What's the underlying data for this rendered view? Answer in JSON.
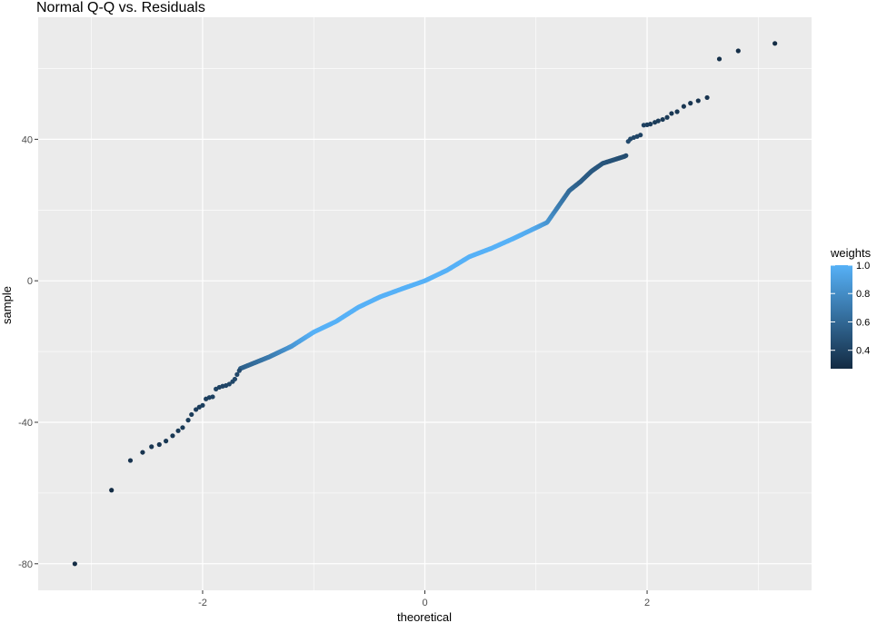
{
  "chart_data": {
    "type": "scatter",
    "title": "Normal Q-Q vs. Residuals",
    "xlabel": "theoretical",
    "ylabel": "sample",
    "xlim": [
      -3.48,
      3.48
    ],
    "ylim": [
      -87.5,
      74.5
    ],
    "x_ticks": [
      -2,
      0,
      2
    ],
    "x_tick_labels": [
      "-2",
      "0",
      "2"
    ],
    "y_ticks": [
      -80,
      -40,
      0,
      40
    ],
    "y_tick_labels": [
      "-80",
      "-40",
      "0",
      "40"
    ],
    "grid": true,
    "panel_background": "#ebebeb",
    "grid_color": "#ffffff",
    "color_scale": {
      "name": "weights",
      "low_color": "#132b43",
      "high_color": "#56b1f7",
      "range": [
        0.27,
        1.0
      ],
      "breaks": [
        0.4,
        0.6,
        0.8,
        1.0
      ],
      "break_labels": [
        "0.4",
        "0.6",
        "0.8",
        "1.0"
      ],
      "legend_position": "right"
    },
    "points": [
      {
        "x": -3.15,
        "y": -80.0,
        "w": 0.28
      },
      {
        "x": -2.82,
        "y": -59.2,
        "w": 0.28
      },
      {
        "x": -2.65,
        "y": -50.8,
        "w": 0.32
      },
      {
        "x": -2.54,
        "y": -48.5,
        "w": 0.32
      },
      {
        "x": -2.46,
        "y": -46.9,
        "w": 0.33
      },
      {
        "x": -2.39,
        "y": -46.3,
        "w": 0.33
      },
      {
        "x": -2.33,
        "y": -45.3,
        "w": 0.34
      },
      {
        "x": -2.27,
        "y": -43.8,
        "w": 0.34
      },
      {
        "x": -2.22,
        "y": -42.4,
        "w": 0.35
      },
      {
        "x": -2.18,
        "y": -41.5,
        "w": 0.35
      },
      {
        "x": -2.13,
        "y": -39.4,
        "w": 0.36
      },
      {
        "x": -2.1,
        "y": -37.8,
        "w": 0.36
      },
      {
        "x": -2.06,
        "y": -36.4,
        "w": 0.37
      },
      {
        "x": -2.03,
        "y": -35.7,
        "w": 0.37
      },
      {
        "x": -2.0,
        "y": -35.2,
        "w": 0.38
      },
      {
        "x": -1.97,
        "y": -33.4,
        "w": 0.38
      },
      {
        "x": -1.94,
        "y": -33.0,
        "w": 0.39
      },
      {
        "x": -1.91,
        "y": -32.8,
        "w": 0.39
      },
      {
        "x": -1.88,
        "y": -30.6,
        "w": 0.4
      },
      {
        "x": -1.85,
        "y": -30.1,
        "w": 0.4
      },
      {
        "x": -1.82,
        "y": -29.8,
        "w": 0.41
      },
      {
        "x": -1.79,
        "y": -29.6,
        "w": 0.41
      },
      {
        "x": -1.76,
        "y": -29.2,
        "w": 0.42
      },
      {
        "x": -1.73,
        "y": -28.5,
        "w": 0.42
      },
      {
        "x": -1.71,
        "y": -27.8,
        "w": 0.43
      },
      {
        "x": -1.69,
        "y": -26.5,
        "w": 0.43
      },
      {
        "x": -1.67,
        "y": -25.4,
        "w": 0.44
      },
      {
        "x": 1.81,
        "y": 35.4,
        "w": 0.45
      },
      {
        "x": 1.83,
        "y": 39.4,
        "w": 0.44
      },
      {
        "x": 1.85,
        "y": 40.1,
        "w": 0.43
      },
      {
        "x": 1.88,
        "y": 40.5,
        "w": 0.42
      },
      {
        "x": 1.91,
        "y": 40.8,
        "w": 0.41
      },
      {
        "x": 1.94,
        "y": 41.2,
        "w": 0.4
      },
      {
        "x": 1.97,
        "y": 44.0,
        "w": 0.39
      },
      {
        "x": 2.0,
        "y": 44.1,
        "w": 0.38
      },
      {
        "x": 2.03,
        "y": 44.3,
        "w": 0.37
      },
      {
        "x": 2.07,
        "y": 44.8,
        "w": 0.36
      },
      {
        "x": 2.1,
        "y": 45.2,
        "w": 0.36
      },
      {
        "x": 2.14,
        "y": 45.6,
        "w": 0.35
      },
      {
        "x": 2.18,
        "y": 46.2,
        "w": 0.35
      },
      {
        "x": 2.22,
        "y": 47.3,
        "w": 0.34
      },
      {
        "x": 2.27,
        "y": 47.8,
        "w": 0.34
      },
      {
        "x": 2.33,
        "y": 49.3,
        "w": 0.33
      },
      {
        "x": 2.39,
        "y": 50.2,
        "w": 0.33
      },
      {
        "x": 2.46,
        "y": 50.9,
        "w": 0.32
      },
      {
        "x": 2.54,
        "y": 51.8,
        "w": 0.32
      },
      {
        "x": 2.65,
        "y": 62.7,
        "w": 0.3
      },
      {
        "x": 2.82,
        "y": 65.0,
        "w": 0.29
      },
      {
        "x": 3.15,
        "y": 67.1,
        "w": 0.28
      }
    ],
    "dense_segments": [
      {
        "x": [
          -1.66,
          -1.4,
          -1.2,
          -1.0,
          -0.8,
          -0.6,
          -0.4,
          -0.2,
          0.0,
          0.2,
          0.4,
          0.6,
          0.8,
          1.0,
          1.1,
          1.2,
          1.3,
          1.4,
          1.5,
          1.6,
          1.7,
          1.8
        ],
        "y": [
          -24.8,
          -21.5,
          -18.5,
          -14.5,
          -11.5,
          -7.5,
          -4.5,
          -2.2,
          0.0,
          3.0,
          6.8,
          9.2,
          12.0,
          15.0,
          16.5,
          21.0,
          25.5,
          28.0,
          31.0,
          33.2,
          34.2,
          35.2
        ],
        "w": [
          0.55,
          0.7,
          0.85,
          1.0,
          1.0,
          1.0,
          1.0,
          1.0,
          1.0,
          1.0,
          1.0,
          1.0,
          1.0,
          0.95,
          0.85,
          0.72,
          0.62,
          0.55,
          0.52,
          0.5,
          0.48,
          0.46
        ],
        "n": 400
      }
    ]
  }
}
